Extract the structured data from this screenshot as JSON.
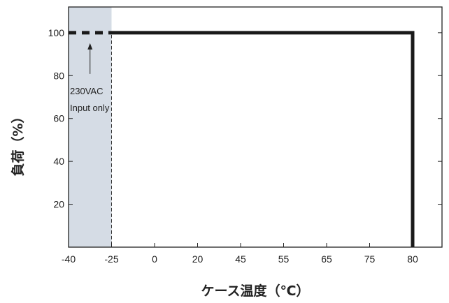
{
  "chart_data": {
    "type": "line",
    "xlabel": "ケース温度（℃）",
    "ylabel": "負荷（%）",
    "x_ticks": [
      "-40",
      "-25",
      "0",
      "20",
      "45",
      "55",
      "65",
      "75",
      "80"
    ],
    "y_ticks": [
      20,
      40,
      60,
      80,
      100
    ],
    "ylim": [
      0,
      112
    ],
    "grid": false,
    "series": [
      {
        "style": "dashed",
        "points": [
          {
            "x": -40,
            "y": 100
          },
          {
            "x": -25,
            "y": 100
          }
        ]
      },
      {
        "style": "solid",
        "points": [
          {
            "x": -25,
            "y": 100
          },
          {
            "x": 80,
            "y": 100
          },
          {
            "x": 80,
            "y": 0
          }
        ]
      }
    ],
    "shaded_region": {
      "x_start": -40,
      "x_end": -25
    },
    "annotation": {
      "line1": "230VAC",
      "line2": "Input only",
      "x": -32.5,
      "arrow_to_y": 100
    },
    "colors": {
      "line": "#1a1a1a",
      "shade": "#d5dce5",
      "frame": "#222222"
    }
  }
}
